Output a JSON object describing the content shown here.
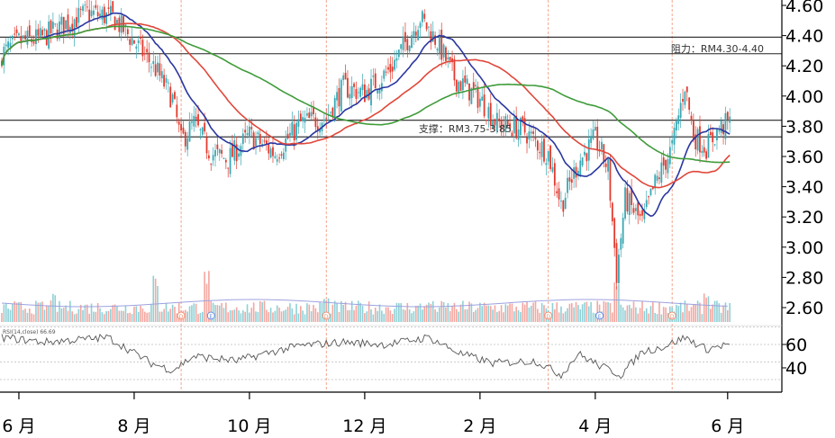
{
  "colors": {
    "up": "#3aa8b4",
    "down": "#e23a2e",
    "sma_fast": "#2a37a0",
    "sma_mid": "#e0473a",
    "sma_slow": "#3f9c3a",
    "vol_up": "#8fd0d6",
    "vol_down": "#f4a7a0",
    "vol_ma": "#9da2e0",
    "event_line": "#f09070",
    "rsi_line": "#555555"
  },
  "chart_data": {
    "type": "candlestick",
    "ylim": [
      2.5,
      4.7
    ],
    "price_ticks": [
      "2.60",
      "2.80",
      "3.00",
      "3.20",
      "3.40",
      "3.60",
      "3.80",
      "4.00",
      "4.20",
      "4.40",
      "4.60"
    ],
    "rsi_ticks": [
      "60",
      "40"
    ],
    "rsi_label": "RSI(14,close) 66.69",
    "x_ticks": [
      "6 月",
      "8 月",
      "10 月",
      "12 月",
      "2 月",
      "4 月",
      "6 月"
    ],
    "x_tick_index": [
      8,
      62,
      116,
      170,
      224,
      278,
      340
    ],
    "levels": {
      "resistance": {
        "label": "阻力：RM4.30-4.40",
        "lines": [
          4.39,
          4.28
        ]
      },
      "support": {
        "label": "支撑：RM3.75-3.85",
        "lines": [
          3.84,
          3.73
        ]
      }
    },
    "event_indices": [
      84,
      152,
      256,
      314
    ],
    "event_markers": [
      {
        "i": 84,
        "symbol": "D",
        "color": "#f09070"
      },
      {
        "i": 98,
        "symbol": "E",
        "color": "#6a8ee0"
      },
      {
        "i": 152,
        "symbol": "D",
        "color": "#f09070"
      },
      {
        "i": 256,
        "symbol": "D",
        "color": "#f09070"
      },
      {
        "i": 280,
        "symbol": "E",
        "color": "#6a8ee0"
      },
      {
        "i": 314,
        "symbol": "D",
        "color": "#f09070"
      }
    ],
    "close_anchors": [
      [
        0,
        4.28
      ],
      [
        8,
        4.36
      ],
      [
        18,
        4.38
      ],
      [
        30,
        4.48
      ],
      [
        40,
        4.55
      ],
      [
        52,
        4.52
      ],
      [
        62,
        4.36
      ],
      [
        72,
        4.18
      ],
      [
        80,
        3.98
      ],
      [
        84,
        3.7
      ],
      [
        90,
        3.82
      ],
      [
        98,
        3.62
      ],
      [
        106,
        3.58
      ],
      [
        116,
        3.74
      ],
      [
        128,
        3.62
      ],
      [
        140,
        3.82
      ],
      [
        152,
        3.86
      ],
      [
        160,
        4.06
      ],
      [
        170,
        4.02
      ],
      [
        182,
        4.18
      ],
      [
        196,
        4.52
      ],
      [
        204,
        4.36
      ],
      [
        212,
        4.12
      ],
      [
        224,
        3.98
      ],
      [
        232,
        3.82
      ],
      [
        244,
        3.78
      ],
      [
        256,
        3.62
      ],
      [
        262,
        3.28
      ],
      [
        270,
        3.56
      ],
      [
        278,
        3.72
      ],
      [
        284,
        3.52
      ],
      [
        288,
        2.82
      ],
      [
        292,
        3.32
      ],
      [
        300,
        3.16
      ],
      [
        306,
        3.42
      ],
      [
        314,
        3.66
      ],
      [
        320,
        4.08
      ],
      [
        324,
        3.74
      ],
      [
        330,
        3.66
      ],
      [
        336,
        3.78
      ],
      [
        340,
        3.82
      ]
    ],
    "rsi_anchors": [
      [
        0,
        66
      ],
      [
        20,
        62
      ],
      [
        50,
        66
      ],
      [
        70,
        44
      ],
      [
        80,
        38
      ],
      [
        90,
        50
      ],
      [
        110,
        46
      ],
      [
        125,
        53
      ],
      [
        140,
        59
      ],
      [
        160,
        62
      ],
      [
        180,
        60
      ],
      [
        200,
        66
      ],
      [
        215,
        52
      ],
      [
        230,
        44
      ],
      [
        250,
        46
      ],
      [
        262,
        34
      ],
      [
        270,
        52
      ],
      [
        280,
        42
      ],
      [
        290,
        34
      ],
      [
        300,
        54
      ],
      [
        310,
        58
      ],
      [
        320,
        66
      ],
      [
        330,
        56
      ],
      [
        340,
        60
      ]
    ],
    "volume": {
      "ma_level": 0.3,
      "peaks": [
        [
          72,
          0.75
        ],
        [
          96,
          0.82
        ],
        [
          288,
          0.7
        ],
        [
          330,
          0.55
        ],
        [
          24,
          0.45
        ],
        [
          152,
          0.4
        ],
        [
          200,
          0.35
        ]
      ]
    }
  }
}
